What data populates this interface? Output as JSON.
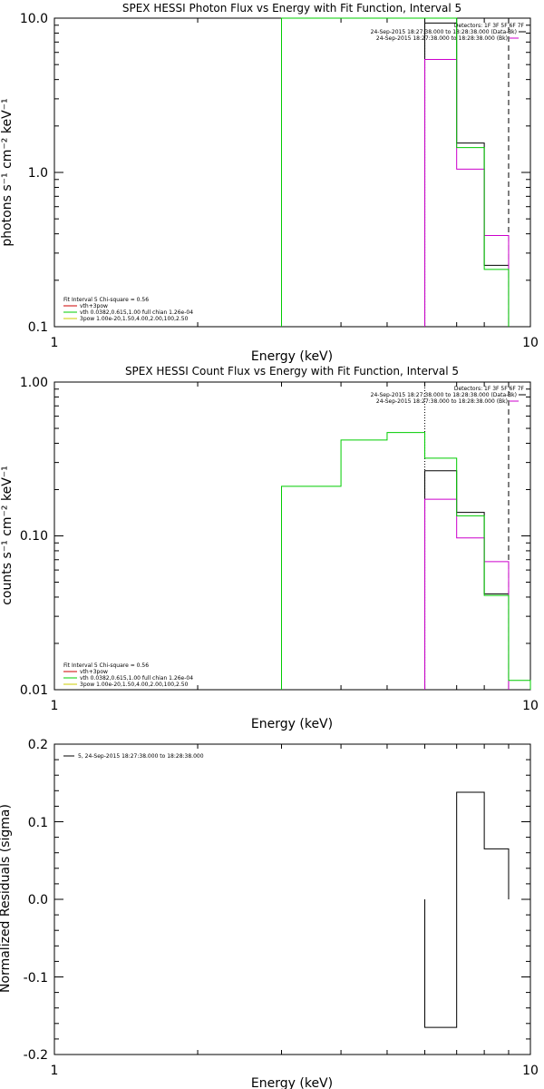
{
  "chart_data": [
    {
      "type": "line",
      "title": "SPEX HESSI Photon Flux vs Energy with Fit Function, Interval 5",
      "xlabel": "Energy (keV)",
      "ylabel": "photons s⁻¹ cm⁻² keV⁻¹",
      "xscale": "log",
      "yscale": "log",
      "xlim": [
        1,
        10
      ],
      "ylim": [
        0.1,
        10.0
      ],
      "x_tick_labels": [
        "1",
        "10"
      ],
      "y_tick_labels": [
        "0.1",
        "1.0",
        "10.0"
      ],
      "detectors_label": "Detectors: 1F 3F 5F 6F 7F",
      "info_lines": [
        {
          "text": "24-Sep-2015 18:27:38.000 to 18:28:38.000 (Data-Bk)",
          "color": "#000000"
        },
        {
          "text": "24-Sep-2015 18:27:38.000 to 18:28:38.000 (Bk)",
          "color": "#cc00cc"
        }
      ],
      "fit_header": "Fit Interval 5   Chi-square = 0.56",
      "fit_legend": [
        {
          "text": "vth+3pow",
          "color": "#cc0000"
        },
        {
          "text": "vth 0.0382,0.615,1.00  full chian 1.26e-04",
          "color": "#00cc00"
        },
        {
          "text": "3pow 1.00e-20,1.50,4.00,2.00,100,2.50",
          "color": "#cccc00"
        }
      ],
      "series": [
        {
          "name": "data-bk",
          "color": "#000000",
          "steps": [
            {
              "x0": 6,
              "x1": 7,
              "y": 9.3
            },
            {
              "x0": 7,
              "x1": 8,
              "y": 1.55
            },
            {
              "x0": 8,
              "x1": 9,
              "y": 0.25
            }
          ]
        },
        {
          "name": "bk",
          "color": "#cc00cc",
          "steps": [
            {
              "x0": 6,
              "x1": 7,
              "y": 5.4
            },
            {
              "x0": 7,
              "x1": 8,
              "y": 1.05
            },
            {
              "x0": 8,
              "x1": 9,
              "y": 0.39
            }
          ]
        },
        {
          "name": "vth+3pow",
          "color": "#00cc00",
          "steps": [
            {
              "x0": 3,
              "x1": 4,
              "y": 10.0
            },
            {
              "x0": 4,
              "x1": 5,
              "y": 10.0
            },
            {
              "x0": 5,
              "x1": 6,
              "y": 10.0
            },
            {
              "x0": 6,
              "x1": 7,
              "y": 10.0
            },
            {
              "x0": 7,
              "x1": 8,
              "y": 1.45
            },
            {
              "x0": 8,
              "x1": 9,
              "y": 0.235
            }
          ]
        }
      ],
      "vlines": [
        {
          "x": 6,
          "style": "dotted",
          "color": "#000000"
        },
        {
          "x": 9,
          "style": "dashed",
          "color": "#000000"
        }
      ]
    },
    {
      "type": "line",
      "title": "SPEX HESSI Count Flux vs Energy with Fit Function, Interval 5",
      "xlabel": "Energy (keV)",
      "ylabel": "counts s⁻¹ cm⁻² keV⁻¹",
      "xscale": "log",
      "yscale": "log",
      "xlim": [
        1,
        10
      ],
      "ylim": [
        0.01,
        1.0
      ],
      "x_tick_labels": [
        "1",
        "10"
      ],
      "y_tick_labels": [
        "0.01",
        "0.10",
        "1.00"
      ],
      "detectors_label": "Detectors: 1F 3F 5F 6F 7F",
      "info_lines": [
        {
          "text": "24-Sep-2015 18:27:38.000 to 18:28:38.000 (Data-Bk)",
          "color": "#000000"
        },
        {
          "text": "24-Sep-2015 18:27:38.000 to 18:28:38.000 (Bk)",
          "color": "#cc00cc"
        }
      ],
      "fit_header": "Fit Interval 5   Chi-square = 0.56",
      "fit_legend": [
        {
          "text": "vth+3pow",
          "color": "#cc0000"
        },
        {
          "text": "vth 0.0382,0.615,1.00  full chian 1.26e-04",
          "color": "#00cc00"
        },
        {
          "text": "3pow 1.00e-20,1.50,4.00,2.00,100,2.50",
          "color": "#cccc00"
        }
      ],
      "series": [
        {
          "name": "data-bk",
          "color": "#000000",
          "steps": [
            {
              "x0": 6,
              "x1": 7,
              "y": 0.265
            },
            {
              "x0": 7,
              "x1": 8,
              "y": 0.142
            },
            {
              "x0": 8,
              "x1": 9,
              "y": 0.042
            }
          ]
        },
        {
          "name": "bk",
          "color": "#cc00cc",
          "steps": [
            {
              "x0": 6,
              "x1": 7,
              "y": 0.173
            },
            {
              "x0": 7,
              "x1": 8,
              "y": 0.097
            },
            {
              "x0": 8,
              "x1": 9,
              "y": 0.068
            }
          ]
        },
        {
          "name": "vth+3pow",
          "color": "#00cc00",
          "steps": [
            {
              "x0": 3,
              "x1": 4,
              "y": 0.21
            },
            {
              "x0": 4,
              "x1": 5,
              "y": 0.42
            },
            {
              "x0": 5,
              "x1": 6,
              "y": 0.47
            },
            {
              "x0": 6,
              "x1": 7,
              "y": 0.32
            },
            {
              "x0": 7,
              "x1": 8,
              "y": 0.135
            },
            {
              "x0": 8,
              "x1": 9,
              "y": 0.041
            },
            {
              "x0": 9,
              "x1": 10,
              "y": 0.0115
            }
          ]
        }
      ],
      "vlines": [
        {
          "x": 6,
          "style": "dotted",
          "color": "#000000"
        },
        {
          "x": 9,
          "style": "dashed",
          "color": "#000000"
        }
      ]
    },
    {
      "type": "line",
      "title": "",
      "xlabel": "Energy (keV)",
      "ylabel": "Normalized Residuals (sigma)",
      "xscale": "log",
      "yscale": "linear",
      "xlim": [
        1,
        10
      ],
      "ylim": [
        -0.2,
        0.2
      ],
      "x_tick_labels": [
        "1",
        "10"
      ],
      "y_tick_labels": [
        "-0.2",
        "-0.1",
        "0.0",
        "0.1",
        "0.2"
      ],
      "residual_legend": "5, 24-Sep-2015 18:27:38.000 to 18:28:38.000",
      "series": [
        {
          "name": "residuals",
          "color": "#000000",
          "steps": [
            {
              "x0": 6,
              "x1": 7,
              "y": -0.165
            },
            {
              "x0": 7,
              "x1": 8,
              "y": 0.138
            },
            {
              "x0": 8,
              "x1": 9,
              "y": 0.065
            }
          ]
        }
      ]
    }
  ]
}
